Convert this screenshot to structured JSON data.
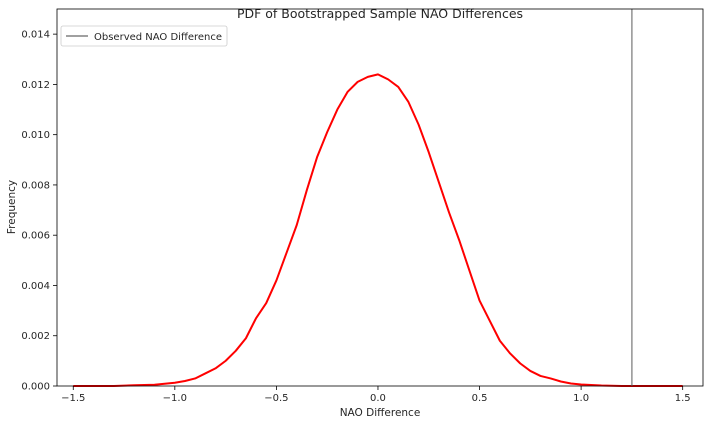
{
  "chart_data": {
    "type": "line",
    "title": "PDF of Bootstrapped Sample NAO Differences",
    "xlabel": "NAO Difference",
    "ylabel": "Frequency",
    "xlim": [
      -1.58,
      1.6
    ],
    "ylim": [
      0,
      0.015
    ],
    "x_ticks": [
      -1.5,
      -1.0,
      -0.5,
      0.0,
      0.5,
      1.0,
      1.5
    ],
    "x_tick_labels": [
      "−1.5",
      "−1.0",
      "−0.5",
      "0.0",
      "0.5",
      "1.0",
      "1.5"
    ],
    "y_ticks": [
      0,
      0.002,
      0.004,
      0.006,
      0.008,
      0.01,
      0.012,
      0.014
    ],
    "y_tick_labels": [
      "0.000",
      "0.002",
      "0.004",
      "0.006",
      "0.008",
      "0.010",
      "0.012",
      "0.014"
    ],
    "grid": false,
    "legend_position": "top-left",
    "series": [
      {
        "kind": "pdf-curve",
        "color": "#ff0000",
        "x": [
          -1.5,
          -1.4,
          -1.3,
          -1.2,
          -1.1,
          -1.0,
          -0.95,
          -0.9,
          -0.85,
          -0.8,
          -0.75,
          -0.7,
          -0.65,
          -0.6,
          -0.55,
          -0.5,
          -0.45,
          -0.4,
          -0.35,
          -0.3,
          -0.25,
          -0.2,
          -0.15,
          -0.1,
          -0.05,
          0.0,
          0.05,
          0.1,
          0.15,
          0.2,
          0.25,
          0.3,
          0.35,
          0.4,
          0.45,
          0.5,
          0.55,
          0.6,
          0.65,
          0.7,
          0.75,
          0.8,
          0.85,
          0.9,
          0.95,
          1.0,
          1.1,
          1.2,
          1.3,
          1.4,
          1.5
        ],
        "y": [
          0.0,
          0.0,
          0.0,
          3e-05,
          5e-05,
          0.00013,
          0.0002,
          0.0003,
          0.0005,
          0.0007,
          0.001,
          0.0014,
          0.0019,
          0.0027,
          0.0033,
          0.0042,
          0.0053,
          0.0064,
          0.0078,
          0.0091,
          0.0101,
          0.011,
          0.0117,
          0.0121,
          0.0123,
          0.0124,
          0.0122,
          0.0119,
          0.0113,
          0.0104,
          0.0093,
          0.0081,
          0.0069,
          0.0058,
          0.0046,
          0.0034,
          0.0026,
          0.0018,
          0.0013,
          0.0009,
          0.0006,
          0.0004,
          0.0003,
          0.00018,
          0.0001,
          6e-05,
          2e-05,
          0.0,
          0.0,
          0.0,
          0.0
        ]
      },
      {
        "kind": "vertical-line",
        "name": "Observed NAO Difference",
        "color": "#808080",
        "x": 1.25
      }
    ]
  }
}
